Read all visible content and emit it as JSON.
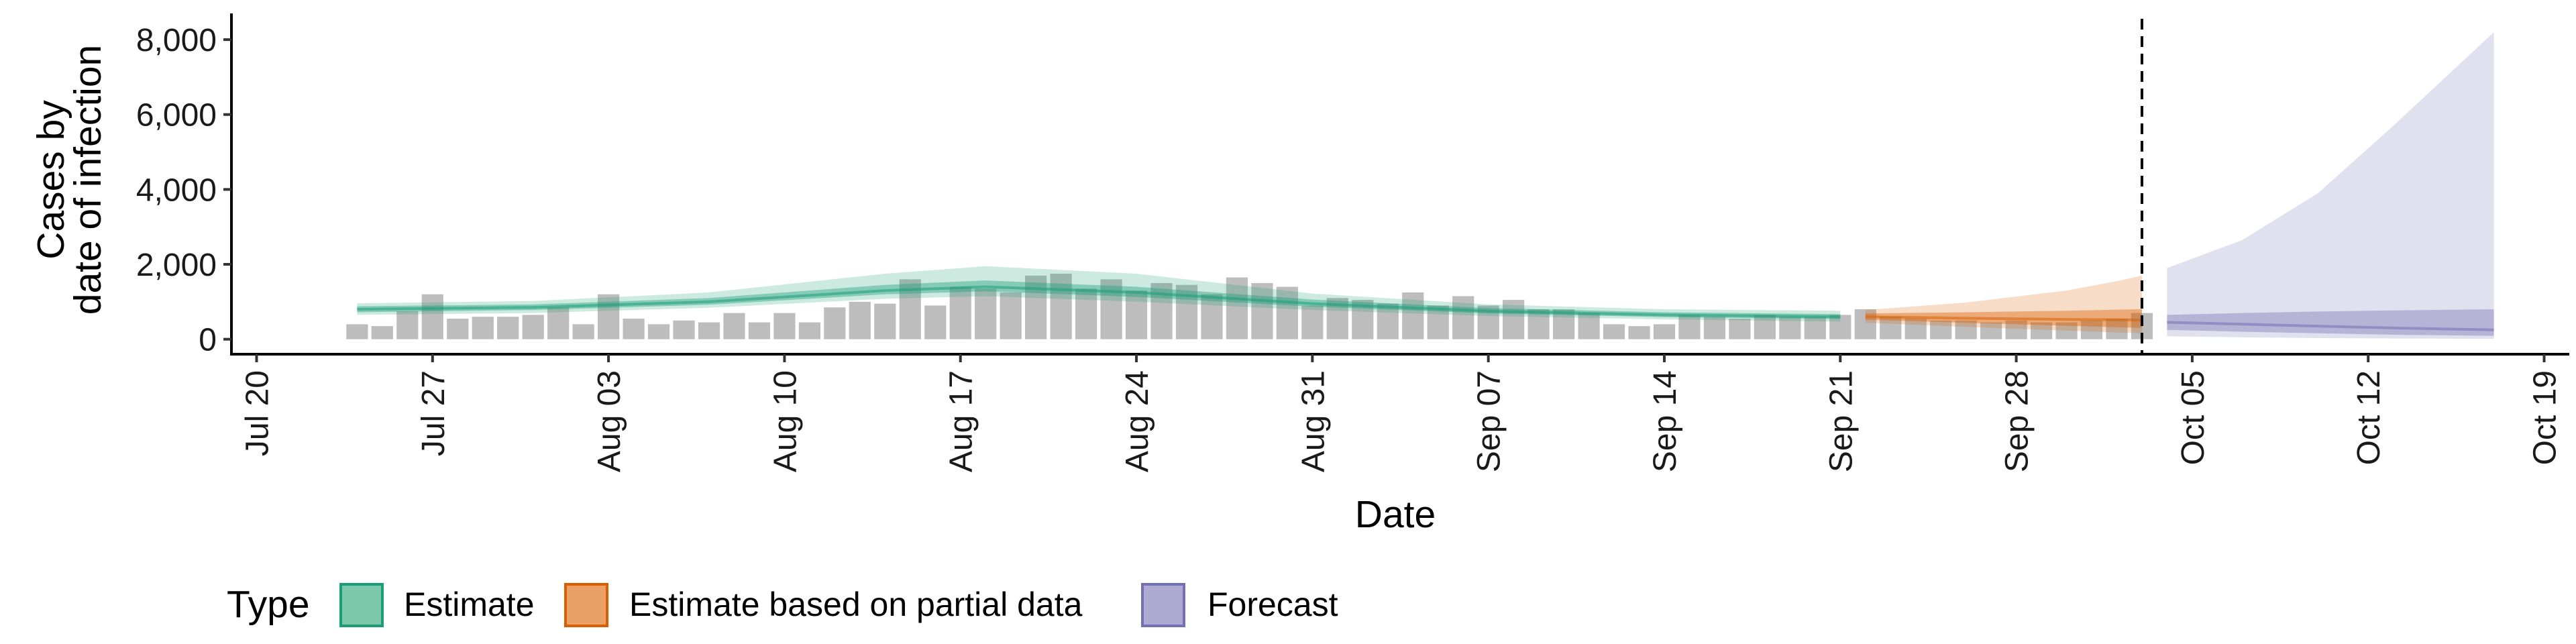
{
  "chart_data": {
    "type": "bar",
    "xlabel": "Date",
    "ylabel_lines": [
      "Cases by",
      "date of infection"
    ],
    "ylim": [
      -400,
      8700
    ],
    "y_ticks": [
      {
        "value": 0,
        "label": "0"
      },
      {
        "value": 2000,
        "label": "2,000"
      },
      {
        "value": 4000,
        "label": "4,000"
      },
      {
        "value": 6000,
        "label": "6,000"
      },
      {
        "value": 8000,
        "label": "8,000"
      }
    ],
    "x_ticks": [
      {
        "date": "2020-07-20",
        "label": "Jul 20"
      },
      {
        "date": "2020-07-27",
        "label": "Jul 27"
      },
      {
        "date": "2020-08-03",
        "label": "Aug 03"
      },
      {
        "date": "2020-08-10",
        "label": "Aug 10"
      },
      {
        "date": "2020-08-17",
        "label": "Aug 17"
      },
      {
        "date": "2020-08-24",
        "label": "Aug 24"
      },
      {
        "date": "2020-08-31",
        "label": "Aug 31"
      },
      {
        "date": "2020-09-07",
        "label": "Sep 07"
      },
      {
        "date": "2020-09-14",
        "label": "Sep 14"
      },
      {
        "date": "2020-09-21",
        "label": "Sep 21"
      },
      {
        "date": "2020-09-28",
        "label": "Sep 28"
      },
      {
        "date": "2020-10-05",
        "label": "Oct 05"
      },
      {
        "date": "2020-10-12",
        "label": "Oct 12"
      },
      {
        "date": "2020-10-19",
        "label": "Oct 19"
      }
    ],
    "xlim": [
      "2020-07-19",
      "2020-10-20"
    ],
    "vline_date": "2020-10-03",
    "reported_cases": {
      "start_date": "2020-07-24",
      "values": [
        400,
        350,
        750,
        1200,
        550,
        600,
        600,
        650,
        850,
        400,
        1200,
        550,
        400,
        500,
        450,
        700,
        450,
        700,
        450,
        850,
        1000,
        950,
        1600,
        900,
        1400,
        1350,
        1250,
        1700,
        1750,
        1350,
        1600,
        1300,
        1500,
        1450,
        1200,
        1650,
        1500,
        1400,
        900,
        1100,
        1050,
        950,
        1250,
        900,
        1150,
        900,
        1050,
        800,
        800,
        700,
        400,
        350,
        400,
        650,
        600,
        550,
        650,
        600,
        600,
        650,
        800,
        600,
        550,
        500,
        500,
        450,
        500,
        450,
        450,
        500,
        550,
        700
      ]
    },
    "series": [
      {
        "name": "Estimate",
        "color": "#1b9e77",
        "dates": [
          "2020-07-24",
          "2020-07-31",
          "2020-08-07",
          "2020-08-14",
          "2020-08-18",
          "2020-08-24",
          "2020-08-31",
          "2020-09-07",
          "2020-09-14",
          "2020-09-21"
        ],
        "median": [
          800,
          850,
          1000,
          1300,
          1400,
          1250,
          950,
          750,
          650,
          600
        ],
        "inner_low": [
          720,
          780,
          920,
          1200,
          1280,
          1130,
          870,
          690,
          590,
          540
        ],
        "inner_high": [
          880,
          930,
          1100,
          1450,
          1570,
          1400,
          1060,
          830,
          720,
          670
        ],
        "outer_low": [
          650,
          700,
          840,
          1080,
          1150,
          1000,
          780,
          620,
          530,
          470
        ],
        "outer_high": [
          960,
          1020,
          1250,
          1750,
          1950,
          1750,
          1220,
          930,
          800,
          760
        ]
      },
      {
        "name": "Estimate based on partial data",
        "color": "#d95f02",
        "dates": [
          "2020-09-22",
          "2020-09-26",
          "2020-09-30",
          "2020-10-02",
          "2020-10-03"
        ],
        "median": [
          600,
          560,
          530,
          520,
          510
        ],
        "inner_low": [
          520,
          440,
          360,
          320,
          300
        ],
        "inner_high": [
          690,
          720,
          760,
          790,
          800
        ],
        "outer_low": [
          440,
          330,
          230,
          180,
          160
        ],
        "outer_high": [
          780,
          980,
          1300,
          1550,
          1700
        ]
      },
      {
        "name": "Forecast",
        "color": "#7570b3",
        "dates": [
          "2020-10-04",
          "2020-10-07",
          "2020-10-10",
          "2020-10-13",
          "2020-10-17"
        ],
        "median": [
          450,
          400,
          350,
          300,
          250
        ],
        "inner_low": [
          250,
          200,
          160,
          120,
          90
        ],
        "inner_high": [
          650,
          700,
          740,
          770,
          800
        ],
        "outer_low": [
          80,
          50,
          30,
          20,
          10
        ],
        "outer_high": [
          1900,
          2650,
          3900,
          5700,
          8200
        ]
      }
    ],
    "legend": {
      "title": "Type",
      "position": "bottom",
      "items": [
        {
          "label": "Estimate",
          "fill": "#7dc8aa",
          "stroke": "#1b9e77"
        },
        {
          "label": "Estimate based on partial data",
          "fill": "#eba066",
          "stroke": "#d95f02"
        },
        {
          "label": "Forecast",
          "fill": "#aeaad1",
          "stroke": "#7570b3"
        }
      ]
    },
    "grid": false
  }
}
